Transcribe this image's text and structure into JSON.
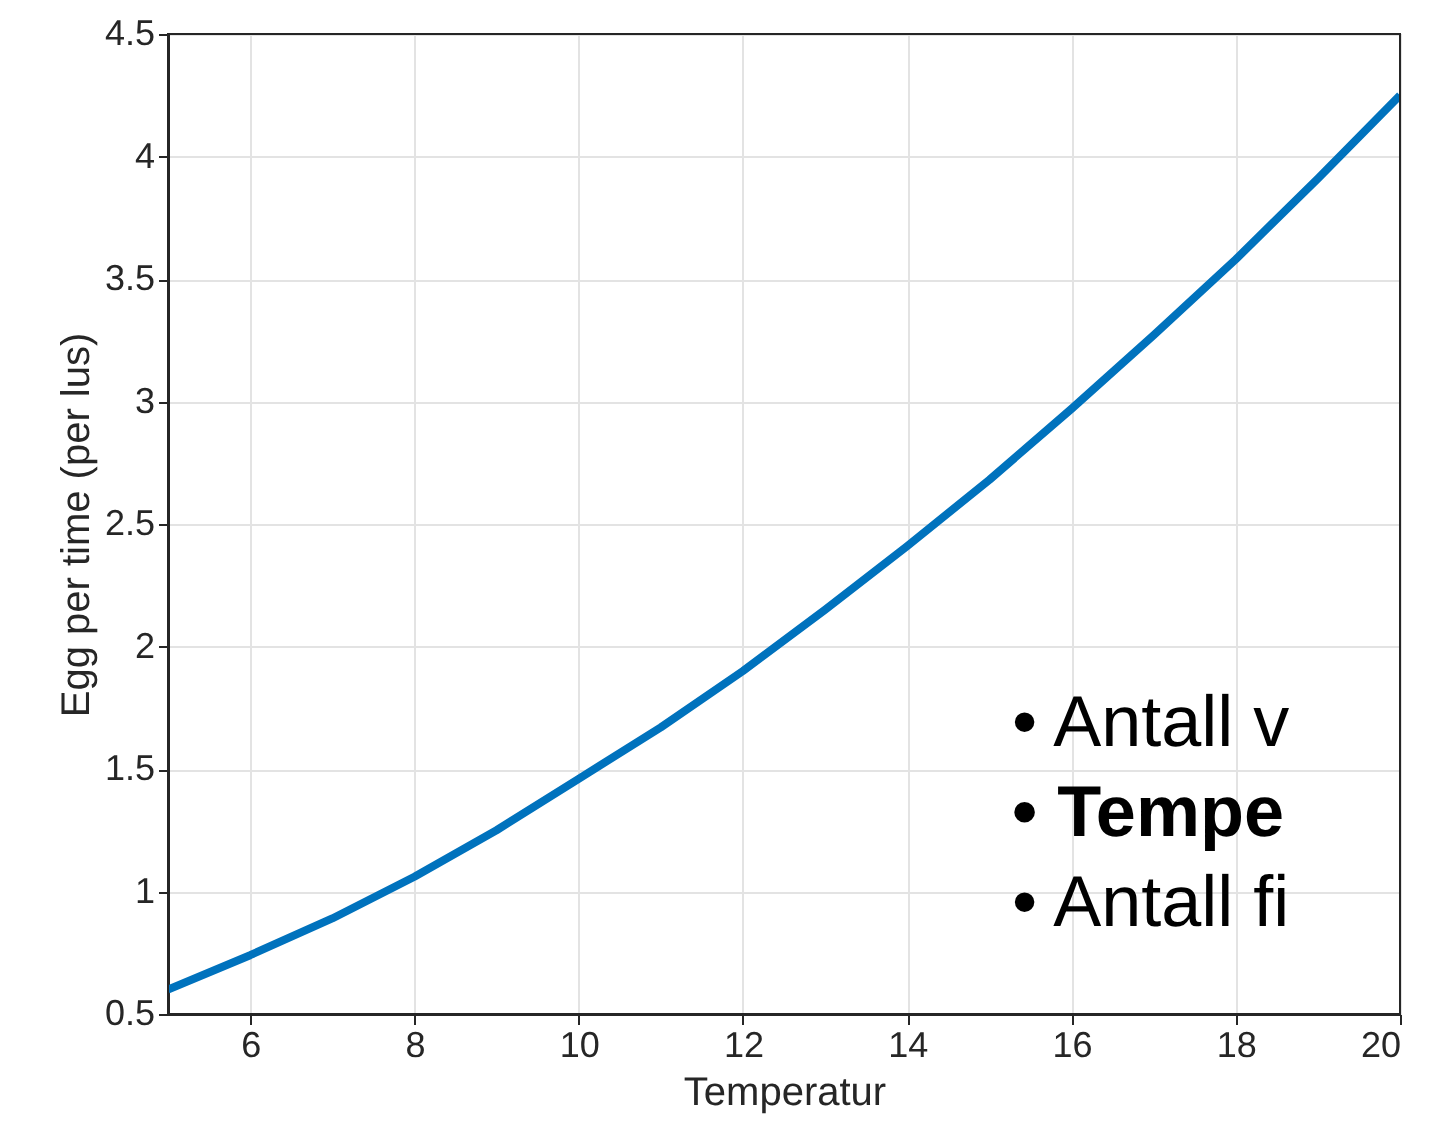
{
  "chart_data": {
    "type": "line",
    "xlabel": "Temperatur",
    "ylabel": "Egg per time (per lus)",
    "x": [
      5,
      6,
      7,
      8,
      9,
      10,
      11,
      12,
      13,
      14,
      15,
      16,
      17,
      18,
      19,
      20
    ],
    "series": [
      {
        "color": "#0072bd",
        "values": [
          0.6,
          0.74,
          0.89,
          1.06,
          1.25,
          1.46,
          1.67,
          1.9,
          2.15,
          2.41,
          2.68,
          2.97,
          3.27,
          3.58,
          3.91,
          4.25
        ]
      }
    ],
    "xlim": [
      5,
      20
    ],
    "ylim": [
      0.5,
      4.5
    ],
    "xticks": [
      6,
      8,
      10,
      12,
      14,
      16,
      18,
      20
    ],
    "yticks": [
      0.5,
      1,
      1.5,
      2,
      2.5,
      3,
      3.5,
      4,
      4.5
    ],
    "grid": true,
    "line_style": "solid",
    "marker": "none",
    "annotations": [
      "•   Antall v",
      "•   Tempe",
      "•   Antall fi"
    ]
  }
}
